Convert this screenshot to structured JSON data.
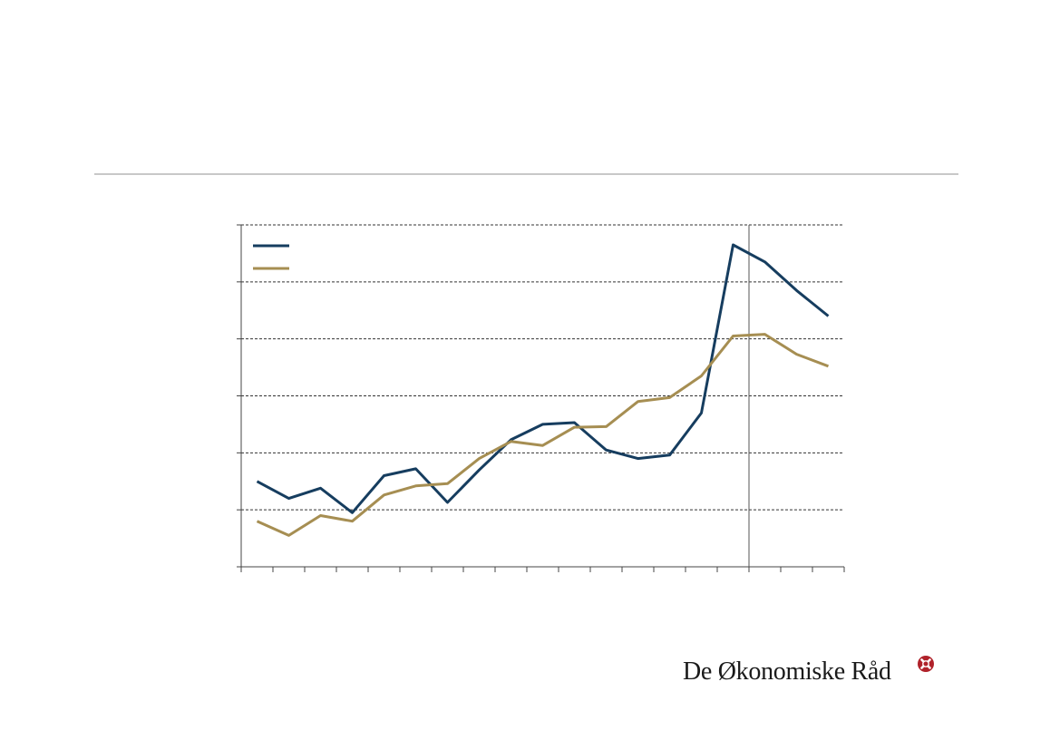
{
  "colors": {
    "series_1": "#163d5f",
    "series_2": "#a68e52",
    "divider": "#c8c8c8",
    "logo_mark": "#b0222a"
  },
  "logo": {
    "text": "De Økonomiske Råd",
    "mark_icon": "economic-council-emblem-icon"
  },
  "chart_data": {
    "type": "line",
    "x": [
      1,
      2,
      3,
      4,
      5,
      6,
      7,
      8,
      9,
      10,
      11,
      12,
      13,
      14,
      15,
      16,
      17,
      18,
      19
    ],
    "ylim": [
      0,
      6
    ],
    "grid": true,
    "legend": "top-left",
    "forecast_divider_after": 16,
    "series": [
      {
        "values": [
          1.5,
          1.2,
          1.38,
          0.95,
          1.6,
          1.72,
          1.13,
          1.7,
          2.23,
          2.5,
          2.53,
          2.05,
          1.9,
          1.96,
          2.7,
          5.65,
          5.35,
          4.85,
          4.4
        ],
        "color_key": "series_1"
      },
      {
        "values": [
          0.8,
          0.55,
          0.9,
          0.8,
          1.26,
          1.42,
          1.46,
          1.9,
          2.2,
          2.13,
          2.45,
          2.46,
          2.9,
          2.97,
          3.35,
          4.05,
          4.08,
          3.73,
          3.52
        ],
        "color_key": "series_2"
      }
    ]
  }
}
